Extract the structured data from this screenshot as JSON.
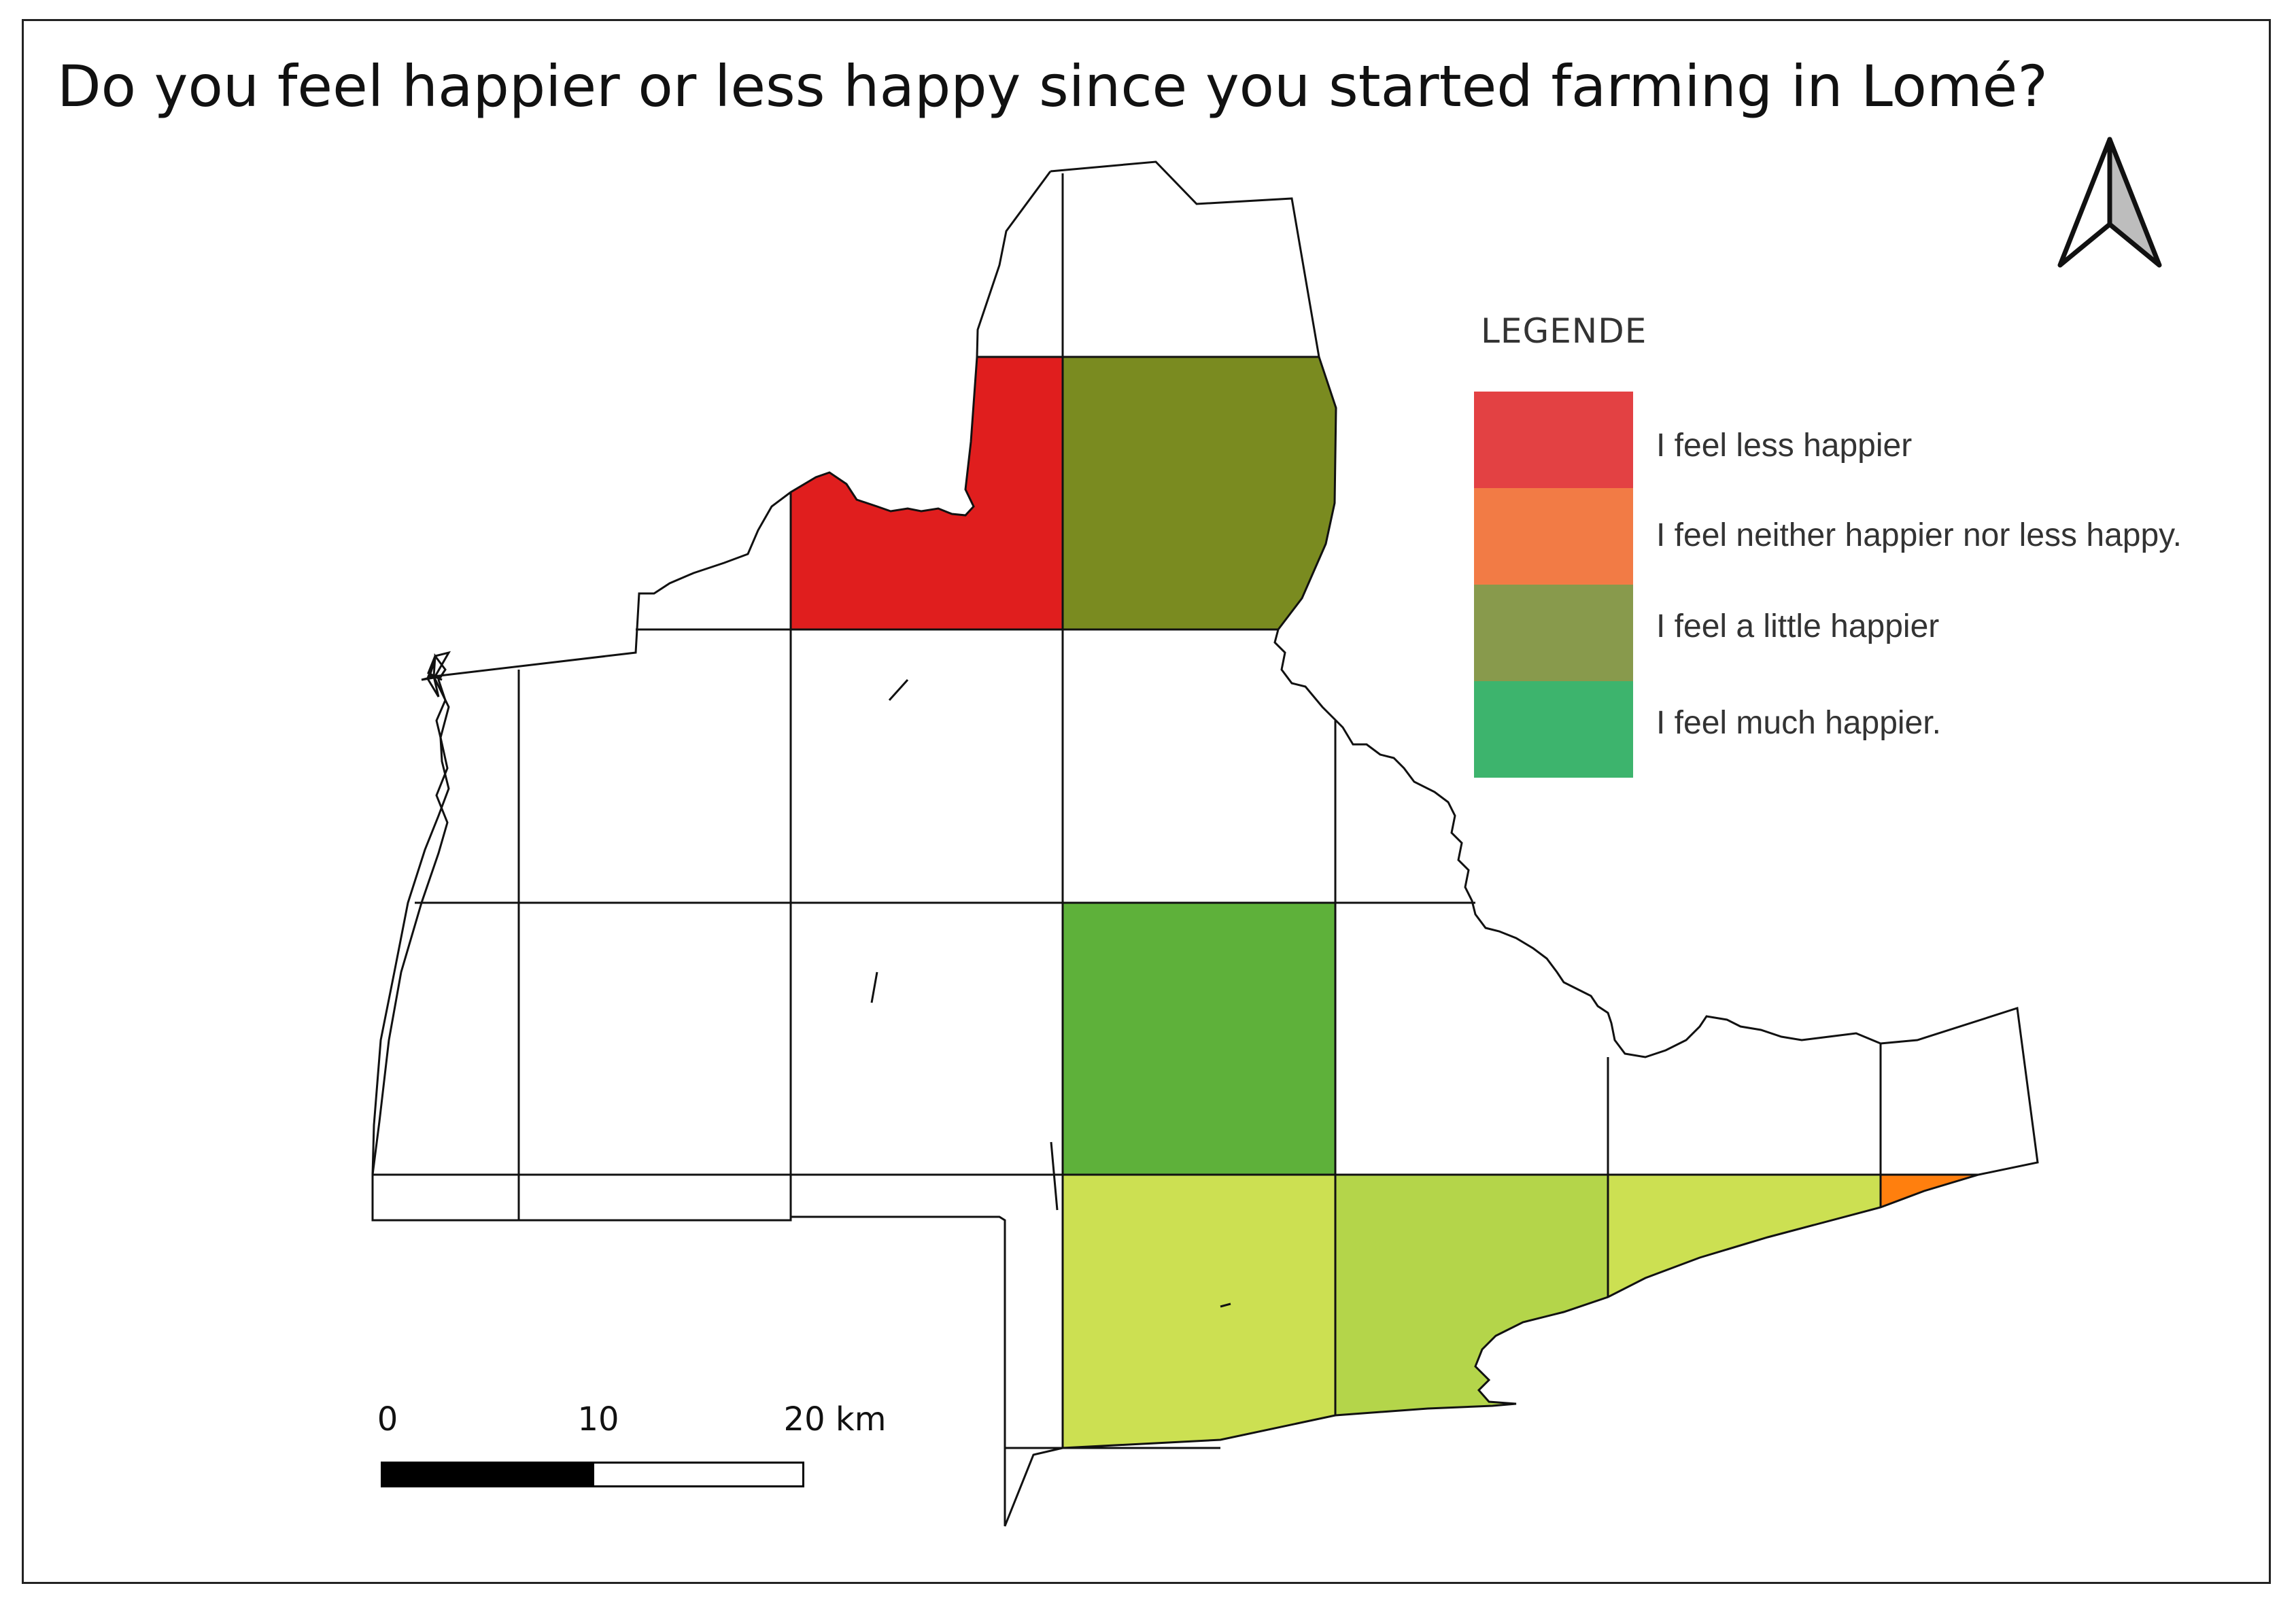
{
  "map": {
    "title": "Do you feel happier or less happy since you started farming in Lomé?",
    "legend": {
      "title": "LEGENDE",
      "items": [
        {
          "label": "I feel less happier",
          "color": "#E34143"
        },
        {
          "label": "I feel neither happier nor less happy.",
          "color": "#F27B45"
        },
        {
          "label": "I feel a little happier",
          "color": "#889A4C"
        },
        {
          "label": "I feel much happier.",
          "color": "#3DB46D"
        }
      ]
    },
    "cell_colors": {
      "red": "#E01E1E",
      "olive": "#7A8B20",
      "green": "#5EB13A",
      "yellow_green": "#CCE052",
      "light_green": "#B4D54A",
      "orange": "#FF7F0E"
    },
    "scale_bar": {
      "labels": [
        "0",
        "10",
        "20 km"
      ]
    },
    "north_arrow": "north-arrow-icon"
  }
}
